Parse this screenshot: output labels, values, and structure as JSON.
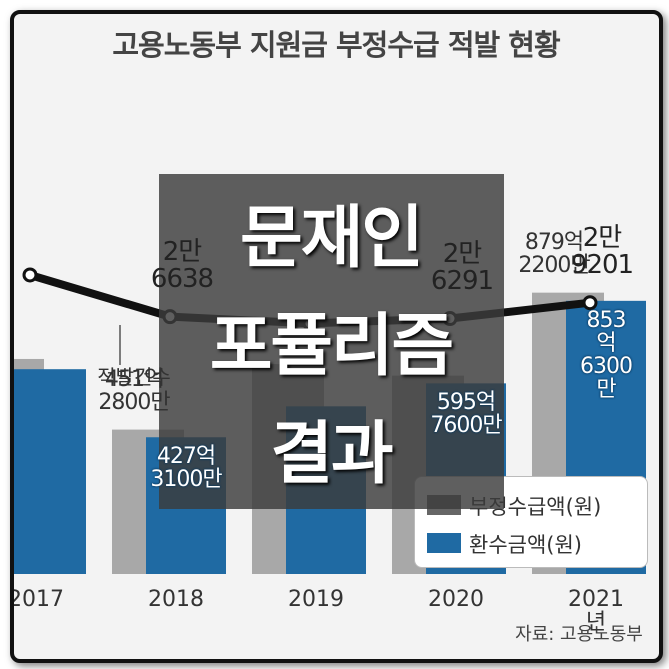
{
  "chart_data": {
    "type": "bar",
    "title": "고용노동부 지원금 부정수급 적발 현황",
    "categories": [
      "2017",
      "2018",
      "2019",
      "2020",
      "2021년"
    ],
    "series": [
      {
        "name": "부정수급액(원)",
        "color": "#a8a8a8",
        "legend_color": "#666666",
        "type": "bar",
        "values": [
          672,
          451.28,
          656,
          620,
          879.22
        ],
        "value_labels": [
          null,
          "451억\n2800만",
          null,
          null,
          "879억\n2200만"
        ]
      },
      {
        "name": "환수금액(원)",
        "color": "#1f6aa3",
        "type": "bar",
        "values": [
          640,
          427.31,
          524,
          595.76,
          853.63
        ],
        "value_labels": [
          null,
          "427억\n3100만",
          null,
          "595억\n7600만",
          "853억\n6300만"
        ]
      },
      {
        "name": "적발건수",
        "color": "#111111",
        "type": "line",
        "axis": "y2",
        "values": [
          34300,
          26638,
          25400,
          26291,
          29201
        ],
        "value_labels": [
          null,
          "2만\n6638",
          null,
          "2만\n6291",
          "2만\n9201"
        ]
      }
    ],
    "ylim": [
      0,
      1000
    ],
    "y2lim": [
      -20700,
      38160
    ],
    "legend": "lower-right",
    "source": "자료: 고용노동부",
    "overlay": [
      "문재인",
      "포퓰리즘",
      "결과"
    ]
  }
}
